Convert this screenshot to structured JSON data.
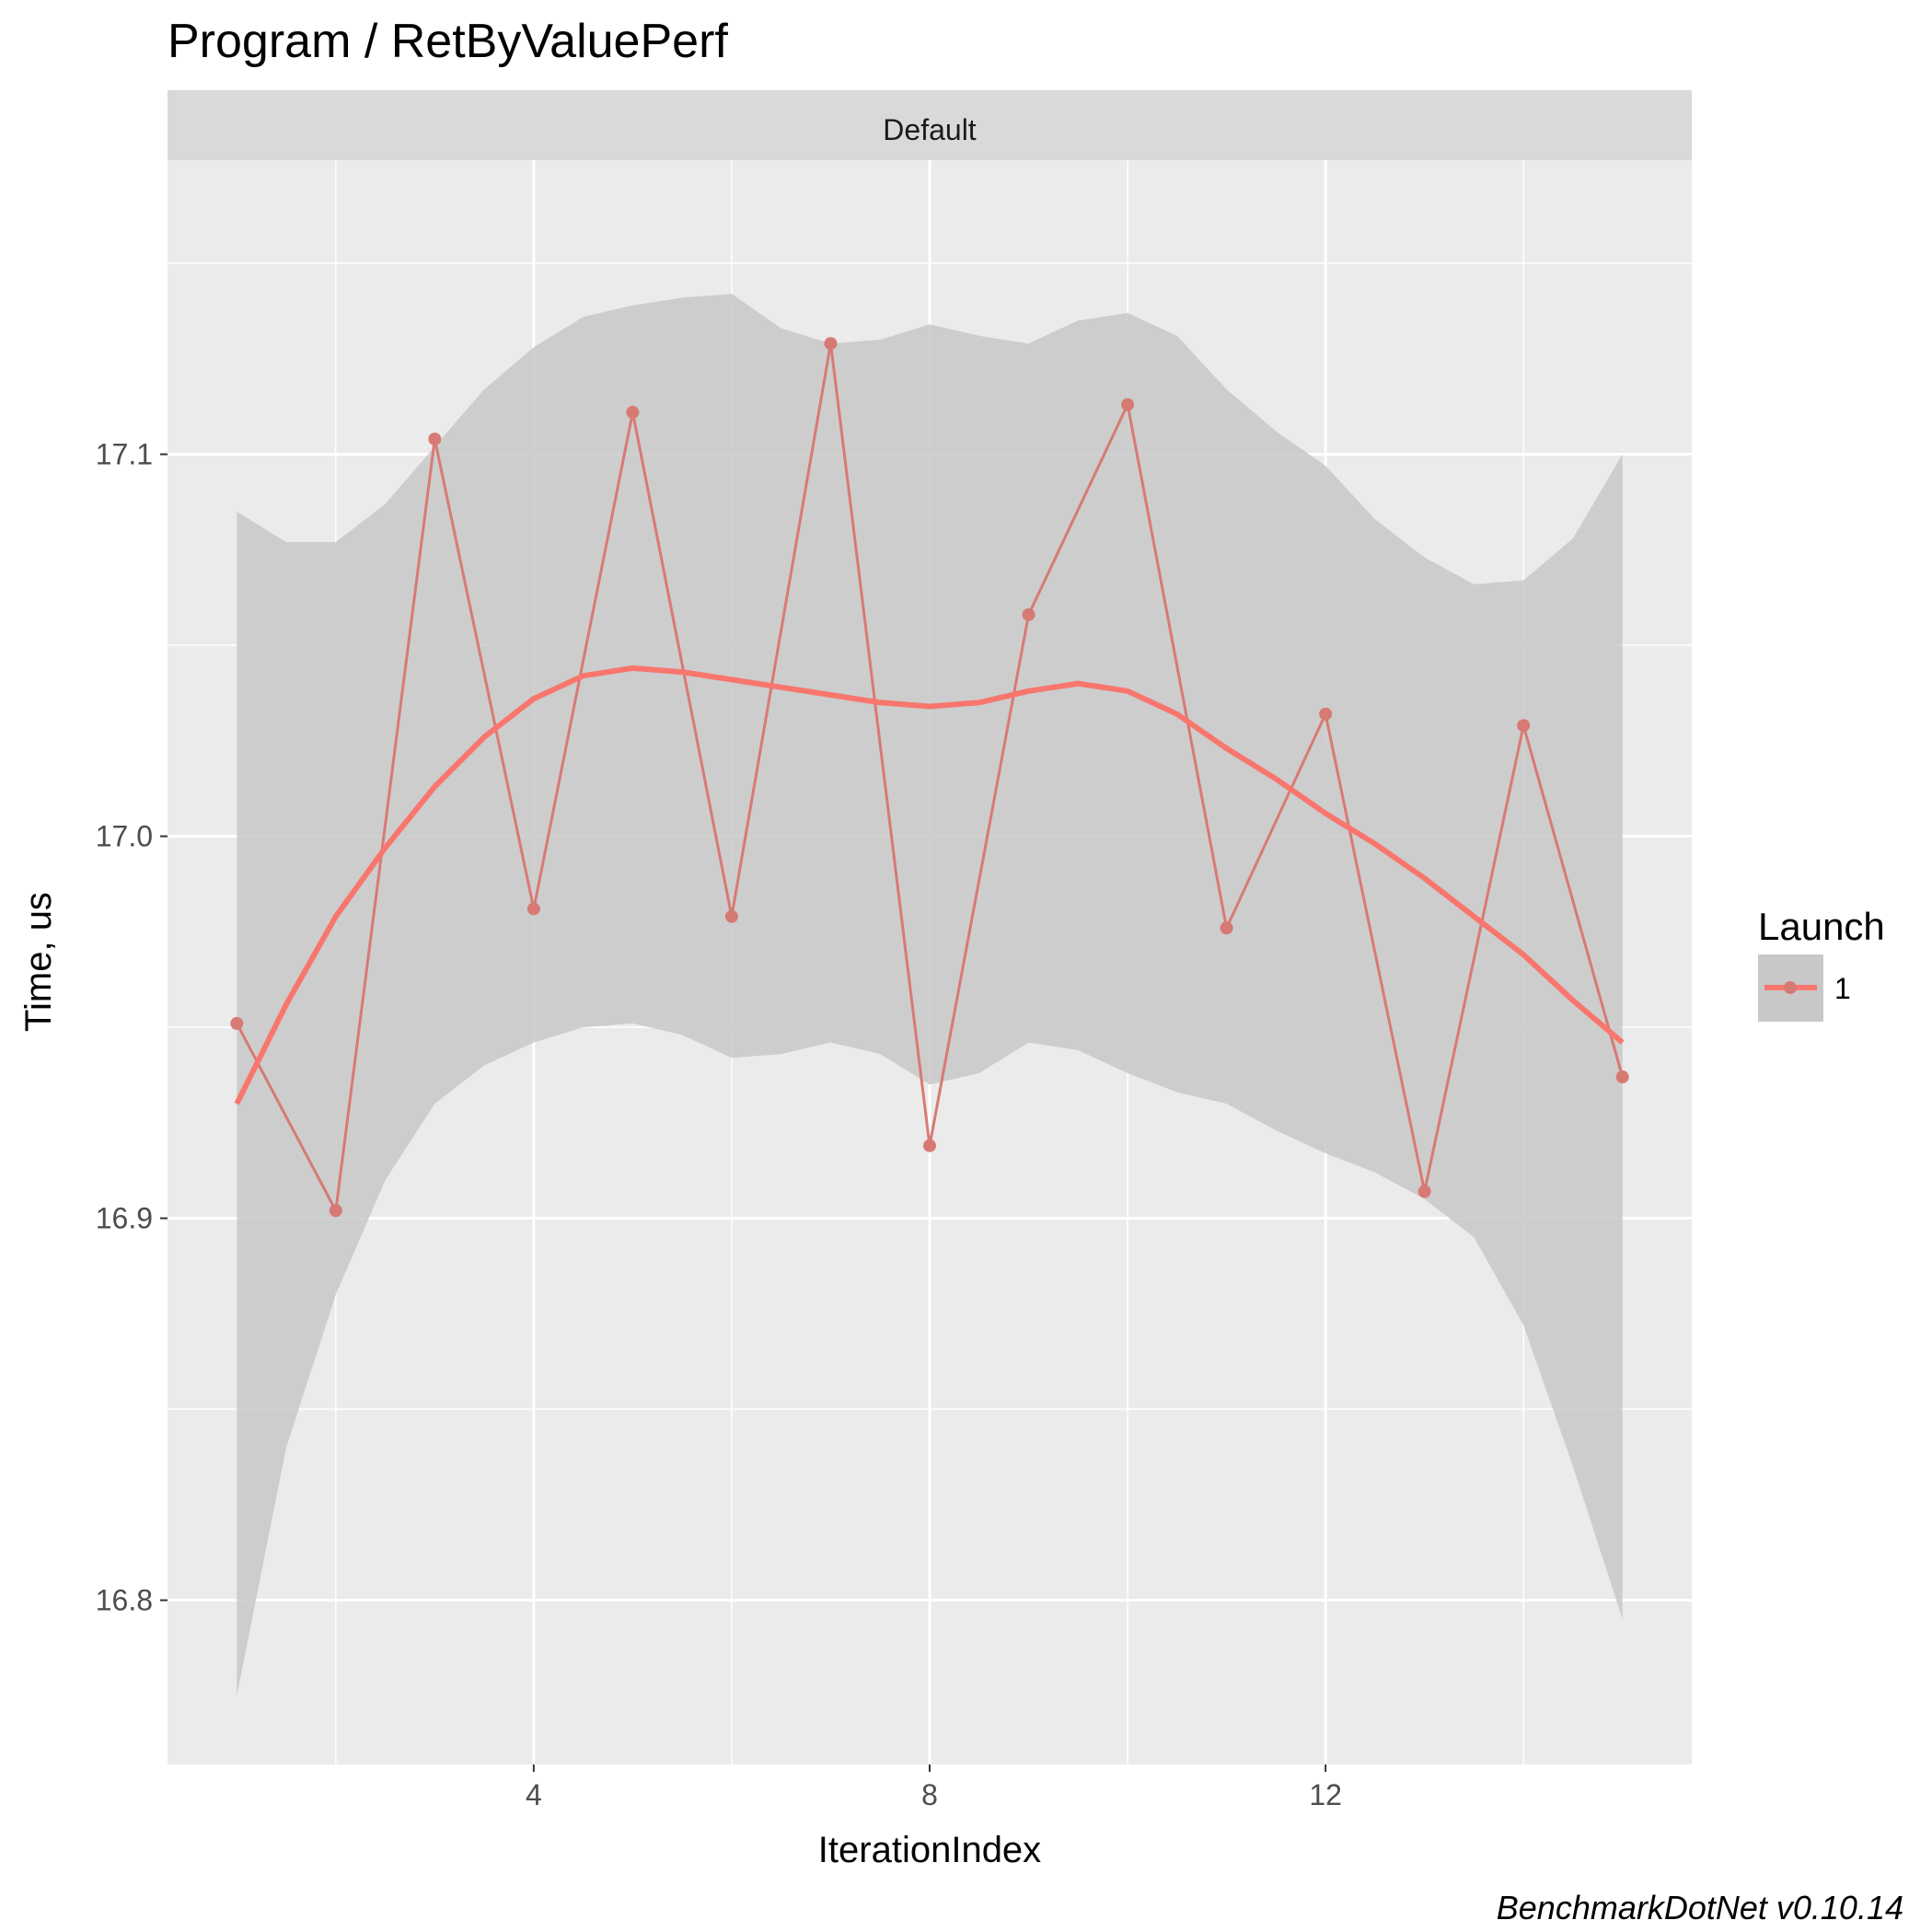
{
  "chart_data": {
    "type": "line",
    "title": "Program / RetByValuePerf",
    "facet_label": "Default",
    "xlabel": "IterationIndex",
    "ylabel": "Time, us",
    "x_ticks": [
      4,
      8,
      12
    ],
    "y_ticks": [
      16.8,
      16.9,
      17.0,
      17.1
    ],
    "xlim": [
      0.3,
      15.7
    ],
    "ylim": [
      16.757,
      17.177
    ],
    "grid": true,
    "legend": {
      "title": "Launch",
      "position": "right",
      "entries": [
        "1"
      ]
    },
    "series": [
      {
        "name": "1",
        "x": [
          1,
          2,
          3,
          4,
          5,
          6,
          7,
          8,
          9,
          10,
          11,
          12,
          13,
          14,
          15
        ],
        "values": [
          16.951,
          16.902,
          17.104,
          16.981,
          17.111,
          16.979,
          17.129,
          16.919,
          17.058,
          17.113,
          16.976,
          17.032,
          16.907,
          17.029,
          16.937
        ]
      }
    ],
    "smooth": {
      "x": [
        1,
        1.5,
        2,
        2.5,
        3,
        3.5,
        4,
        4.5,
        5,
        5.5,
        6,
        6.5,
        7,
        7.5,
        8,
        8.5,
        9,
        9.5,
        10,
        10.5,
        11,
        11.5,
        12,
        12.5,
        13,
        13.5,
        14,
        14.5,
        15
      ],
      "fit": [
        16.93,
        16.956,
        16.979,
        16.997,
        17.013,
        17.026,
        17.036,
        17.042,
        17.044,
        17.043,
        17.041,
        17.039,
        17.037,
        17.035,
        17.034,
        17.035,
        17.038,
        17.04,
        17.038,
        17.032,
        17.023,
        17.015,
        17.006,
        16.998,
        16.989,
        16.979,
        16.969,
        16.957,
        16.946
      ],
      "lower": [
        16.775,
        16.84,
        16.88,
        16.91,
        16.93,
        16.94,
        16.946,
        16.95,
        16.951,
        16.948,
        16.942,
        16.943,
        16.946,
        16.943,
        16.935,
        16.938,
        16.946,
        16.944,
        16.938,
        16.933,
        16.93,
        16.923,
        16.917,
        16.912,
        16.905,
        16.895,
        16.872,
        16.835,
        16.795
      ],
      "upper": [
        17.085,
        17.077,
        17.077,
        17.087,
        17.102,
        17.117,
        17.128,
        17.136,
        17.139,
        17.141,
        17.142,
        17.133,
        17.129,
        17.13,
        17.134,
        17.131,
        17.129,
        17.135,
        17.137,
        17.131,
        17.117,
        17.106,
        17.097,
        17.083,
        17.073,
        17.066,
        17.067,
        17.078,
        17.1
      ]
    },
    "colors": {
      "line": "#f8766d",
      "raw_line": "#d77a74",
      "ribbon": "#c8c8c8",
      "panel": "#ebebeb",
      "strip": "#d9d9d9",
      "grid": "#ffffff"
    },
    "caption": "BenchmarkDotNet v0.10.14"
  }
}
